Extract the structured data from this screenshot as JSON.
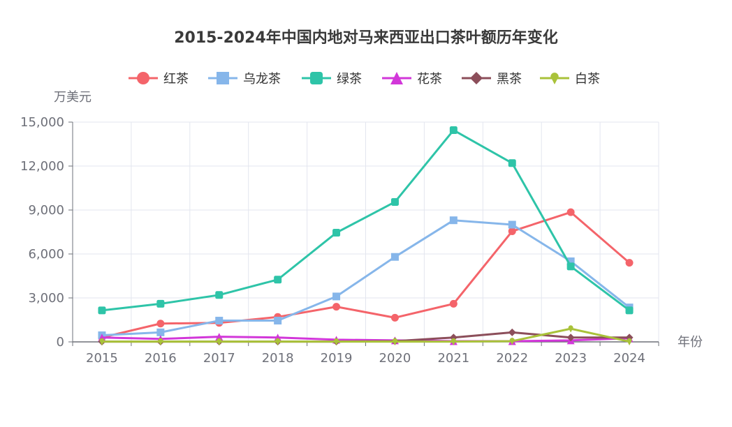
{
  "chart_data": {
    "type": "line",
    "title": "2015-2024年中国内地对马来西亚出口茶叶额历年变化",
    "ylabel": "万美元",
    "xlabel": "年份",
    "categories": [
      "2015",
      "2016",
      "2017",
      "2018",
      "2019",
      "2020",
      "2021",
      "2022",
      "2023",
      "2024"
    ],
    "ylim": [
      0,
      15000
    ],
    "yticks": [
      "0",
      "3,000",
      "6,000",
      "9,000",
      "12,000",
      "15,000"
    ],
    "ytick_values": [
      0,
      3000,
      6000,
      9000,
      12000,
      15000
    ],
    "grid": true,
    "legend_position": "top-center",
    "series": [
      {
        "name": "红茶",
        "color": "#f4646a",
        "marker": "circle",
        "values": [
          300,
          1250,
          1300,
          1700,
          2400,
          1650,
          2600,
          7550,
          8850,
          5400
        ]
      },
      {
        "name": "乌龙茶",
        "color": "#86b6ea",
        "marker": "square",
        "values": [
          450,
          650,
          1450,
          1450,
          3100,
          5800,
          8300,
          8000,
          5500,
          2350
        ]
      },
      {
        "name": "绿茶",
        "color": "#2ec4a8",
        "marker": "roundRect",
        "values": [
          2150,
          2600,
          3200,
          4250,
          7450,
          9550,
          14450,
          12200,
          5150,
          2150
        ]
      },
      {
        "name": "花茶",
        "color": "#d237d9",
        "marker": "triangle",
        "values": [
          300,
          200,
          350,
          300,
          150,
          100,
          50,
          50,
          100,
          250
        ]
      },
      {
        "name": "黑茶",
        "color": "#8c4e5a",
        "marker": "diamond",
        "values": [
          20,
          20,
          20,
          20,
          20,
          50,
          300,
          650,
          300,
          300
        ]
      },
      {
        "name": "白茶",
        "color": "#a9c23a",
        "marker": "pin",
        "values": [
          20,
          20,
          20,
          20,
          20,
          20,
          20,
          50,
          900,
          20
        ]
      }
    ]
  }
}
